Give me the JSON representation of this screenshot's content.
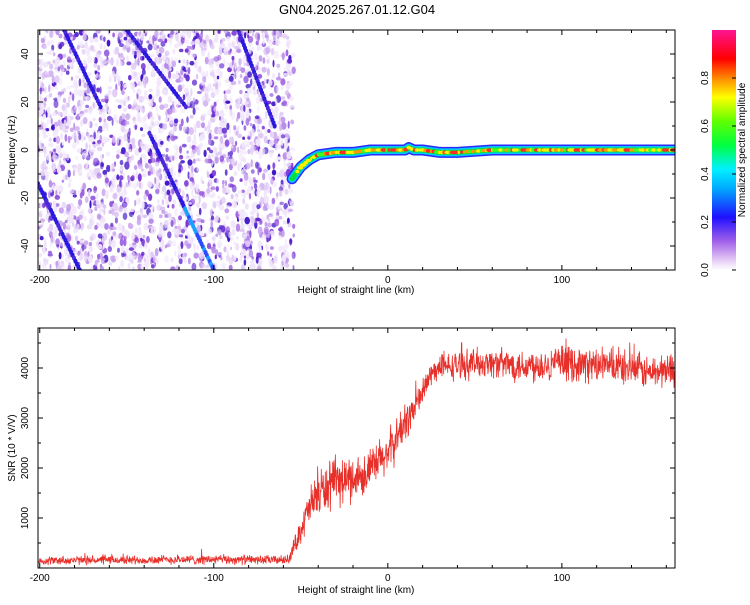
{
  "title": "GN04.2025.267.01.12.G04",
  "chart_data": [
    {
      "type": "heatmap",
      "name": "spectrogram",
      "xlabel": "Height of straight line (km)",
      "ylabel": "Frequency (Hz)",
      "xlim": [
        -201,
        165
      ],
      "ylim": [
        -50,
        50
      ],
      "xticks": [
        -200,
        -100,
        0,
        100
      ],
      "xtick_labels": [
        "-200",
        "-100",
        "0",
        "100"
      ],
      "yticks": [
        -40,
        -20,
        0,
        20,
        40
      ],
      "ytick_labels": [
        "-40",
        "-20",
        "0",
        "20",
        "40"
      ],
      "noise_region_x": [
        -201,
        -54
      ],
      "carrier_line": {
        "x": [
          -55,
          -50,
          -45,
          -40,
          -30,
          -20,
          -10,
          0,
          5,
          10,
          12,
          15,
          20,
          30,
          40,
          60,
          80,
          100,
          120,
          140,
          165
        ],
        "y": [
          -12,
          -7,
          -4,
          -2,
          -1,
          -1,
          0,
          0,
          0,
          0,
          1,
          0,
          0,
          -1,
          -1,
          0,
          0,
          0,
          0,
          0,
          0
        ]
      },
      "drift_lines": [
        {
          "x": [
            -186,
            -165
          ],
          "y": [
            50,
            18
          ]
        },
        {
          "x": [
            -150,
            -116
          ],
          "y": [
            50,
            18
          ]
        },
        {
          "x": [
            -137,
            -100
          ],
          "y": [
            7,
            -50
          ]
        },
        {
          "x": [
            -201,
            -177
          ],
          "y": [
            -14,
            -50
          ]
        },
        {
          "x": [
            -86,
            -65
          ],
          "y": [
            50,
            10
          ]
        }
      ],
      "colorbar": {
        "label": "Normalized spectral amplitude",
        "range": [
          0,
          1
        ],
        "ticks": [
          0.0,
          0.2,
          0.4,
          0.6,
          0.8
        ],
        "tick_labels": [
          "0.0",
          "0.2",
          "0.4",
          "0.6",
          "0.8"
        ]
      }
    },
    {
      "type": "line",
      "name": "snr",
      "xlabel": "Height of straight line (km)",
      "ylabel": "SNR (10 * V/V)",
      "xlim": [
        -201,
        165
      ],
      "ylim": [
        0,
        4800
      ],
      "xticks": [
        -200,
        -100,
        0,
        100
      ],
      "xtick_labels": [
        "-200",
        "-100",
        "0",
        "100"
      ],
      "yticks": [
        1000,
        2000,
        3000,
        4000
      ],
      "ytick_labels": [
        "1000",
        "2000",
        "3000",
        "4000"
      ],
      "color": "#e8302b",
      "envelope": {
        "x": [
          -201,
          -150,
          -100,
          -57,
          -45,
          -40,
          -30,
          -20,
          -10,
          0,
          10,
          15,
          20,
          25,
          30,
          40,
          50,
          60,
          80,
          100,
          120,
          140,
          150,
          165
        ],
        "mean": [
          150,
          160,
          170,
          160,
          1200,
          1500,
          1700,
          1800,
          1950,
          2300,
          2900,
          3200,
          3500,
          3900,
          4000,
          4050,
          4100,
          4100,
          4050,
          4100,
          4050,
          4000,
          3900,
          4000
        ],
        "spread": [
          90,
          90,
          100,
          90,
          400,
          500,
          500,
          450,
          450,
          450,
          400,
          350,
          300,
          250,
          250,
          300,
          300,
          300,
          350,
          350,
          350,
          350,
          350,
          350
        ]
      }
    }
  ]
}
